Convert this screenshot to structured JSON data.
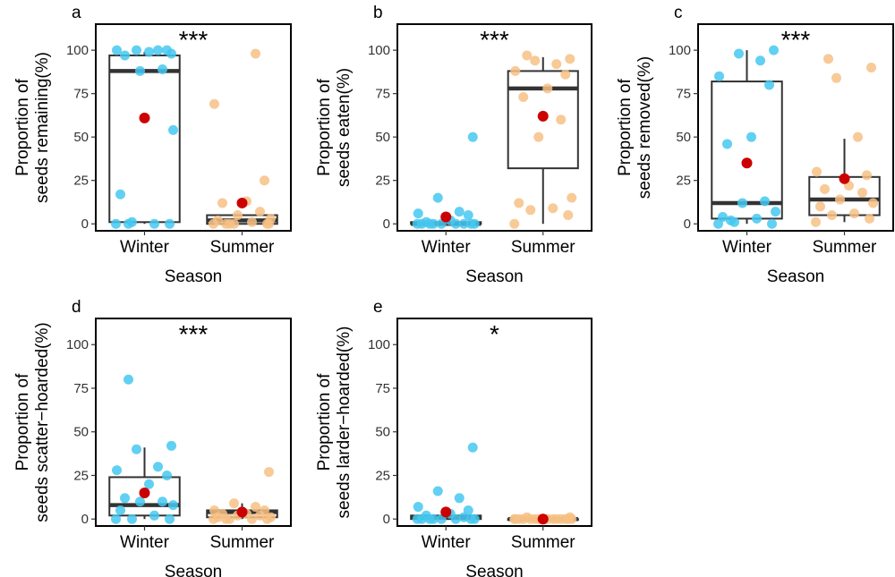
{
  "colors": {
    "winter": "#45c8f0",
    "summer": "#f7c185",
    "mean": "#cc0000",
    "box": "#333333"
  },
  "chart_data": [
    {
      "type": "box+strip",
      "panel": "a",
      "signif": "***",
      "ylabel": [
        "Proportion of",
        "seeds remaining(%)"
      ],
      "xlabel": "Season",
      "categories": [
        "Winter",
        "Summer"
      ],
      "yticks": [
        0,
        25,
        50,
        75,
        100
      ],
      "ylim": [
        -4,
        115
      ],
      "groups": [
        {
          "box": {
            "q1": 1,
            "median": 88,
            "q3": 97,
            "whisk_lo": 0,
            "whisk_hi": 99
          },
          "mean": 61,
          "points": [
            0,
            0,
            1,
            0,
            17,
            54,
            88,
            89,
            97,
            99,
            100,
            100,
            100,
            100,
            98,
            0
          ]
        },
        {
          "box": {
            "q1": 0,
            "median": 2,
            "q3": 5,
            "whisk_lo": 0,
            "whisk_hi": 5
          },
          "mean": 12,
          "points": [
            0,
            0,
            0,
            1,
            2,
            3,
            5,
            7,
            12,
            13,
            25,
            69,
            98,
            0,
            0,
            0
          ]
        }
      ]
    },
    {
      "type": "box+strip",
      "panel": "b",
      "signif": "***",
      "ylabel": [
        "Proportion of",
        "seeds eaten(%)"
      ],
      "xlabel": "Season",
      "categories": [
        "Winter",
        "Summer"
      ],
      "yticks": [
        0,
        25,
        50,
        75,
        100
      ],
      "ylim": [
        -4,
        115
      ],
      "groups": [
        {
          "box": {
            "q1": 0,
            "median": 0,
            "q3": 1,
            "whisk_lo": 0,
            "whisk_hi": 1
          },
          "mean": 4,
          "points": [
            0,
            0,
            0,
            0,
            0,
            0,
            0,
            0,
            1,
            2,
            5,
            6,
            7,
            15,
            50,
            0
          ]
        },
        {
          "box": {
            "q1": 32,
            "median": 78,
            "q3": 88,
            "whisk_lo": 0,
            "whisk_hi": 96
          },
          "mean": 62,
          "points": [
            0,
            5,
            8,
            9,
            12,
            15,
            50,
            60,
            73,
            78,
            86,
            88,
            92,
            94,
            95,
            97
          ]
        }
      ]
    },
    {
      "type": "box+strip",
      "panel": "c",
      "signif": "***",
      "ylabel": [
        "Proportion of",
        "seeds removed(%)"
      ],
      "xlabel": "Season",
      "categories": [
        "Winter",
        "Summer"
      ],
      "yticks": [
        0,
        25,
        50,
        75,
        100
      ],
      "ylim": [
        -4,
        115
      ],
      "groups": [
        {
          "box": {
            "q1": 3,
            "median": 12,
            "q3": 82,
            "whisk_lo": 0,
            "whisk_hi": 100
          },
          "mean": 35,
          "points": [
            0,
            0,
            1,
            3,
            4,
            7,
            12,
            13,
            46,
            50,
            80,
            85,
            94,
            98,
            100,
            2
          ]
        },
        {
          "box": {
            "q1": 5,
            "median": 14,
            "q3": 27,
            "whisk_lo": 1,
            "whisk_hi": 49
          },
          "mean": 26,
          "points": [
            1,
            3,
            5,
            6,
            10,
            12,
            14,
            18,
            20,
            22,
            28,
            30,
            50,
            84,
            90,
            95
          ]
        }
      ]
    },
    {
      "type": "box+strip",
      "panel": "d",
      "signif": "***",
      "ylabel": [
        "Proportion of",
        "seeds scatter−hoarded(%)"
      ],
      "xlabel": "Season",
      "categories": [
        "Winter",
        "Summer"
      ],
      "yticks": [
        0,
        25,
        50,
        75,
        100
      ],
      "ylim": [
        -4,
        115
      ],
      "groups": [
        {
          "box": {
            "q1": 2,
            "median": 8,
            "q3": 24,
            "whisk_lo": 0,
            "whisk_hi": 41
          },
          "mean": 15,
          "points": [
            0,
            0,
            0,
            2,
            5,
            8,
            10,
            10,
            12,
            20,
            25,
            28,
            30,
            40,
            42,
            80
          ]
        },
        {
          "box": {
            "q1": 1,
            "median": 4,
            "q3": 5,
            "whisk_lo": 0,
            "whisk_hi": 9
          },
          "mean": 4,
          "points": [
            0,
            0,
            0,
            0,
            1,
            1,
            2,
            2,
            3,
            3,
            5,
            5,
            7,
            9,
            27,
            0
          ]
        }
      ]
    },
    {
      "type": "box+strip",
      "panel": "e",
      "signif": "*",
      "ylabel": [
        "Proportion of",
        "seeds larder−hoarded(%)"
      ],
      "xlabel": "Season",
      "categories": [
        "Winter",
        "Summer"
      ],
      "yticks": [
        0,
        25,
        50,
        75,
        100
      ],
      "ylim": [
        -4,
        115
      ],
      "groups": [
        {
          "box": {
            "q1": 0,
            "median": 1,
            "q3": 2,
            "whisk_lo": 0,
            "whisk_hi": 2
          },
          "mean": 4,
          "points": [
            0,
            0,
            0,
            0,
            0,
            0,
            0,
            1,
            2,
            3,
            5,
            7,
            12,
            16,
            41,
            0
          ]
        },
        {
          "box": {
            "q1": 0,
            "median": 0,
            "q3": 0,
            "whisk_lo": 0,
            "whisk_hi": 0
          },
          "mean": 0,
          "points": [
            0,
            0,
            0,
            0,
            0,
            0,
            0,
            0,
            0,
            0,
            0,
            0,
            0,
            0,
            1,
            1
          ]
        }
      ]
    }
  ]
}
